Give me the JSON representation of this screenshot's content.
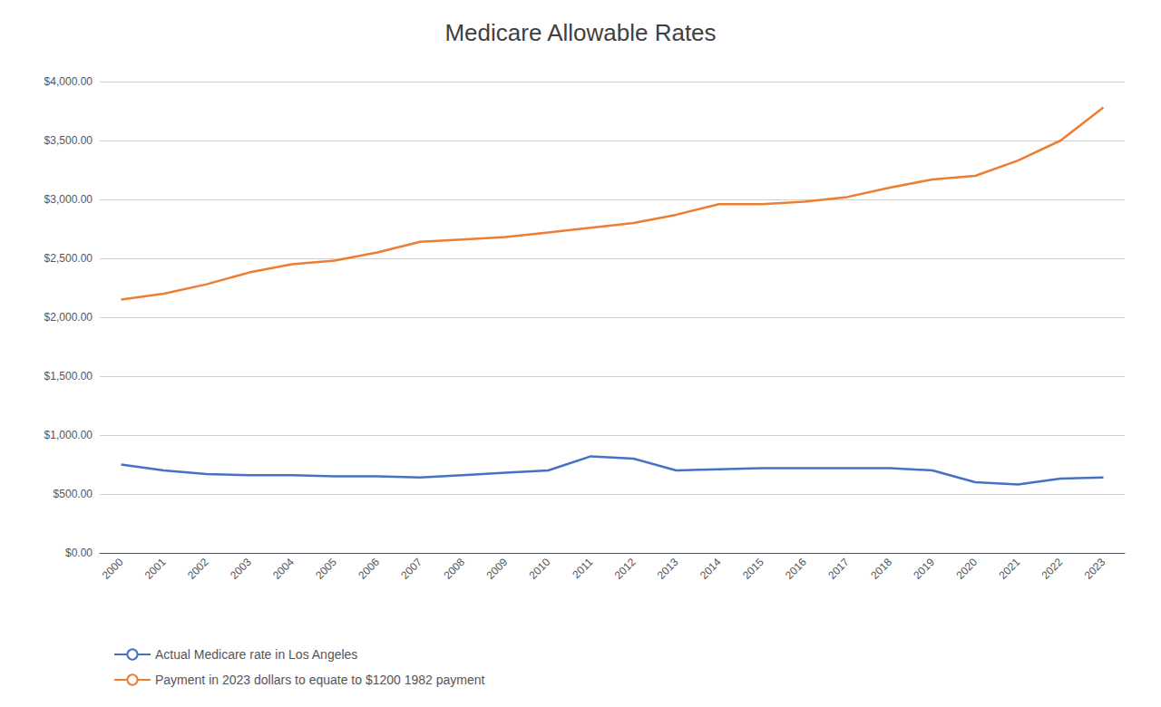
{
  "chart_data": {
    "type": "line",
    "title": "Medicare Allowable Rates",
    "categories": [
      "2000",
      "2001",
      "2002",
      "2003",
      "2004",
      "2005",
      "2006",
      "2007",
      "2008",
      "2009",
      "2010",
      "2011",
      "2012",
      "2013",
      "2014",
      "2015",
      "2016",
      "2017",
      "2018",
      "2019",
      "2020",
      "2021",
      "2022",
      "2023"
    ],
    "series": [
      {
        "name": "Payment in 2023 dollars to equate to $1200 1982 payment",
        "color": "#ED7D31",
        "values": [
          2150,
          2200,
          2280,
          2380,
          2450,
          2480,
          2550,
          2640,
          2660,
          2680,
          2720,
          2760,
          2800,
          2870,
          2960,
          2960,
          2980,
          3020,
          3100,
          3170,
          3200,
          3330,
          3500,
          3780
        ]
      },
      {
        "name": "Actual Medicare rate in Los Angeles",
        "color": "#4472C4",
        "values": [
          750,
          700,
          670,
          660,
          660,
          650,
          650,
          640,
          660,
          680,
          700,
          820,
          800,
          700,
          710,
          720,
          720,
          720,
          720,
          700,
          600,
          580,
          630,
          640
        ]
      }
    ],
    "ylim": [
      0,
      4000
    ],
    "yticks": [
      {
        "value": 0,
        "label": "$0.00"
      },
      {
        "value": 500,
        "label": "$500.00"
      },
      {
        "value": 1000,
        "label": "$1,000.00"
      },
      {
        "value": 1500,
        "label": "$1,500.00"
      },
      {
        "value": 2000,
        "label": "$2,000.00"
      },
      {
        "value": 2500,
        "label": "$2,500.00"
      },
      {
        "value": 3000,
        "label": "$3,000.00"
      },
      {
        "value": 3500,
        "label": "$3,500.00"
      },
      {
        "value": 4000,
        "label": "$4,000.00"
      }
    ],
    "grid": true,
    "legend": "bottom left"
  }
}
